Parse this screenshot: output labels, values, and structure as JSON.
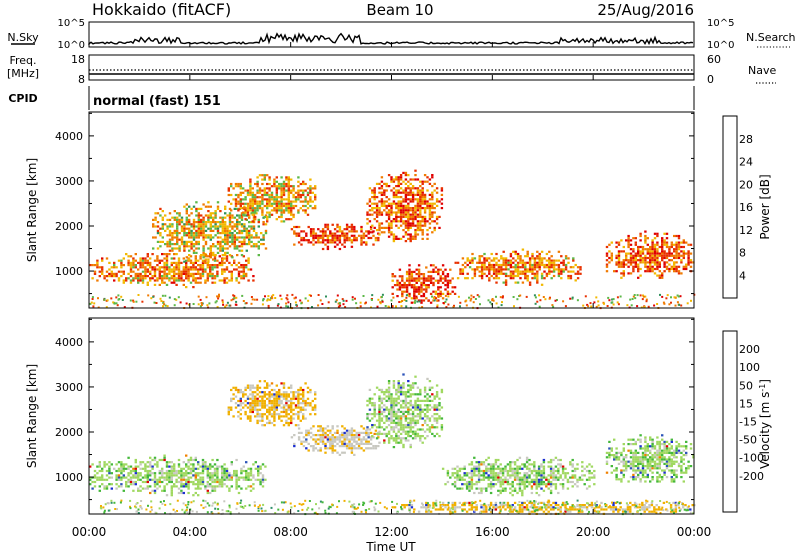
{
  "header": {
    "site": "Hokkaido (fitACF)",
    "beam": "Beam 10",
    "date": "25/Aug/2016"
  },
  "nsky_panel": {
    "label": "N.Sky",
    "right_label": "N.Search",
    "left_ticks": [
      "10^5",
      "10^0"
    ],
    "right_ticks": [
      "10^5",
      "10^0"
    ]
  },
  "freq_panel": {
    "label_line1": "Freq.",
    "label_line2": "[MHz]",
    "left_ticks": [
      "18",
      "8"
    ],
    "right_ticks": [
      "60",
      "0"
    ],
    "right_label": "Nave"
  },
  "cpid_panel": {
    "label": "CPID",
    "value": "normal (fast) 151"
  },
  "x_axis": {
    "label": "Time UT",
    "ticks": [
      "00:00",
      "04:00",
      "08:00",
      "12:00",
      "16:00",
      "20:00",
      "00:00"
    ]
  },
  "power_colorbar": {
    "label": "Power [dB]",
    "ticks": [
      "4",
      "8",
      "12",
      "16",
      "20",
      "24",
      "28"
    ],
    "colors": [
      "#0018f0",
      "#2e4fb0",
      "#2f8f5a",
      "#5cb848",
      "#f2b800",
      "#f07a00",
      "#e83000",
      "#e00000"
    ]
  },
  "velocity_colorbar": {
    "label": "Velocity [m s^-1]",
    "ticks": [
      "200",
      "100",
      "50",
      "15",
      "-15",
      "-50",
      "-100",
      "-200"
    ],
    "colors": [
      "#1c2fd0",
      "#2b53b8",
      "#2f8f6a",
      "#44b83a",
      "#a0d860",
      "#c8c8c0",
      "#f0b000",
      "#f08000",
      "#f04a00",
      "#e00000"
    ]
  },
  "chart_data": [
    {
      "type": "heatmap",
      "title": "",
      "quantity": "Power [dB]",
      "xlabel": "Time UT",
      "ylabel": "Slant Range [km]",
      "xlim": [
        0,
        24
      ],
      "ylim": [
        180,
        4530
      ],
      "yticks": [
        1000,
        2000,
        3000,
        4000
      ],
      "zlim": [
        0,
        32
      ],
      "features": [
        {
          "t0": 0.0,
          "t1": 6.5,
          "r0": 650,
          "r1": 1450,
          "level": 22
        },
        {
          "t0": 2.5,
          "t1": 7.0,
          "r0": 1200,
          "r1": 2600,
          "level": 18
        },
        {
          "t0": 5.5,
          "t1": 9.0,
          "r0": 2100,
          "r1": 3200,
          "level": 20
        },
        {
          "t0": 8.0,
          "t1": 11.5,
          "r0": 1500,
          "r1": 2100,
          "level": 26
        },
        {
          "t0": 11.0,
          "t1": 14.0,
          "r0": 1600,
          "r1": 3300,
          "level": 24
        },
        {
          "t0": 12.0,
          "t1": 14.5,
          "r0": 300,
          "r1": 1200,
          "level": 26
        },
        {
          "t0": 14.5,
          "t1": 19.5,
          "r0": 700,
          "r1": 1500,
          "level": 22
        },
        {
          "t0": 20.5,
          "t1": 24.0,
          "r0": 800,
          "r1": 1900,
          "level": 24
        }
      ]
    },
    {
      "type": "heatmap",
      "title": "",
      "quantity": "Velocity [m s^-1]",
      "xlabel": "Time UT",
      "ylabel": "Slant Range [km]",
      "xlim": [
        0,
        24
      ],
      "ylim": [
        180,
        4530
      ],
      "yticks": [
        1000,
        2000,
        3000,
        4000
      ],
      "zlim": [
        -250,
        250
      ],
      "features": [
        {
          "t0": 0.0,
          "t1": 7.0,
          "r0": 600,
          "r1": 1500,
          "level": 0
        },
        {
          "t0": 5.5,
          "t1": 9.0,
          "r0": 2100,
          "r1": 3200,
          "level": -60
        },
        {
          "t0": 8.0,
          "t1": 11.5,
          "r0": 1500,
          "r1": 2200,
          "level": -40
        },
        {
          "t0": 11.0,
          "t1": 14.0,
          "r0": 1600,
          "r1": 3300,
          "level": 0
        },
        {
          "t0": 14.0,
          "t1": 20.0,
          "r0": 600,
          "r1": 1500,
          "level": 0
        },
        {
          "t0": 20.5,
          "t1": 24.0,
          "r0": 800,
          "r1": 2000,
          "level": 0
        },
        {
          "t0": 12.0,
          "t1": 24.0,
          "r0": 200,
          "r1": 500,
          "level": -60
        }
      ]
    }
  ]
}
